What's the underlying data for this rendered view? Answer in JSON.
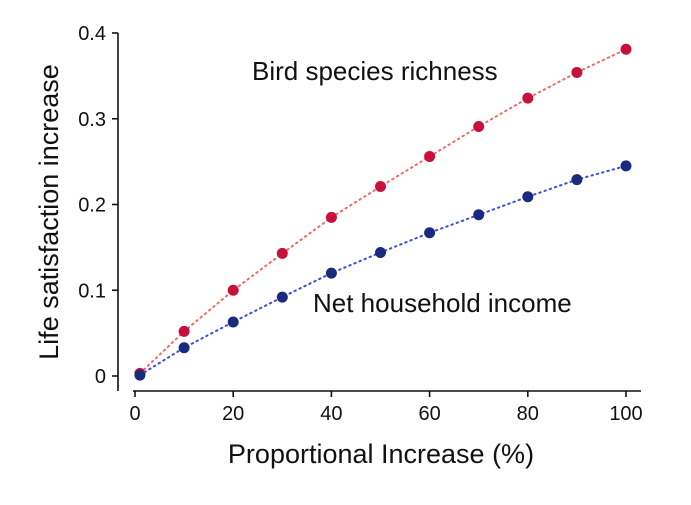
{
  "chart_data": {
    "type": "scatter",
    "xlabel": "Proportional Increase (%)",
    "ylabel": "Life satisfaction increase",
    "xlim": [
      0,
      100
    ],
    "ylim": [
      0,
      0.4
    ],
    "x_ticks": [
      0,
      20,
      40,
      60,
      80,
      100
    ],
    "y_ticks": [
      0,
      0.1,
      0.2,
      0.3,
      0.4
    ],
    "x_tick_labels": [
      "0",
      "20",
      "40",
      "60",
      "80",
      "100"
    ],
    "y_tick_labels": [
      "0",
      "0.1",
      "0.2",
      "0.3",
      "0.4"
    ],
    "grid": false,
    "series": [
      {
        "name": "Bird species richness",
        "color": "#c8103a",
        "line_color": "#f26a6a",
        "line_style": "dotted",
        "x": [
          1,
          10,
          20,
          30,
          40,
          50,
          60,
          70,
          80,
          90,
          100
        ],
        "y": [
          0.003,
          0.052,
          0.1,
          0.143,
          0.185,
          0.221,
          0.256,
          0.291,
          0.324,
          0.354,
          0.381
        ]
      },
      {
        "name": "Net household income",
        "color": "#1a2a7c",
        "line_color": "#3d4fdc",
        "line_style": "dotted",
        "x": [
          1,
          10,
          20,
          30,
          40,
          50,
          60,
          70,
          80,
          90,
          100
        ],
        "y": [
          0.001,
          0.033,
          0.063,
          0.092,
          0.12,
          0.144,
          0.167,
          0.188,
          0.209,
          0.229,
          0.245
        ]
      }
    ]
  }
}
